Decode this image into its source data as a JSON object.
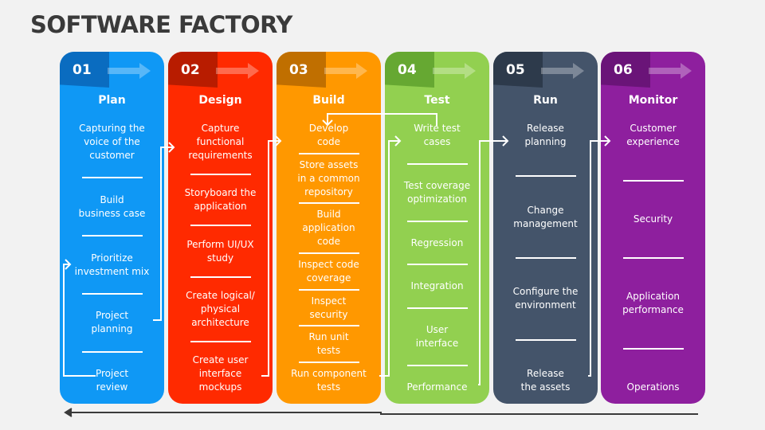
{
  "title": "SOFTWARE FACTORY",
  "stages": [
    {
      "num": "01",
      "name": "Plan",
      "color": "#0f98f5",
      "header": "#0a6cc0",
      "items": [
        "Capturing the\nvoice of the\ncustomer",
        "Build\nbusiness case",
        "Prioritize\ninvestment mix",
        "Project\nplanning",
        "Project\nreview"
      ]
    },
    {
      "num": "02",
      "name": "Design",
      "color": "#ff2a00",
      "header": "#b81c00",
      "items": [
        "Capture\nfunctional\nrequirements",
        "Storyboard the\napplication",
        "Perform UI/UX\nstudy",
        "Create logical/\nphysical\narchitecture",
        "Create user\ninterface\nmockups"
      ]
    },
    {
      "num": "03",
      "name": "Build",
      "color": "#ff9800",
      "header": "#c06f00",
      "items": [
        "Develop\ncode",
        "Store assets\nin a common\nrepository",
        "Build\napplication\ncode",
        "Inspect code\ncoverage",
        "Inspect\nsecurity",
        "Run unit\ntests",
        "Run component\ntests"
      ]
    },
    {
      "num": "04",
      "name": "Test",
      "color": "#92d050",
      "header": "#66a832",
      "items": [
        "Write test\ncases",
        "Test coverage\noptimization",
        "Regression",
        "Integration",
        "User\ninterface",
        "Performance"
      ]
    },
    {
      "num": "05",
      "name": "Run",
      "color": "#44546a",
      "header": "#2d3a4b",
      "items": [
        "Release\nplanning",
        "Change\nmanagement",
        "Configure the\nenvironment",
        "Release\nthe assets"
      ]
    },
    {
      "num": "06",
      "name": "Monitor",
      "color": "#8e1f9e",
      "header": "#6a1478",
      "items": [
        "Customer\nexperience",
        "Security",
        "Application\nperformance",
        "Operations"
      ]
    }
  ]
}
